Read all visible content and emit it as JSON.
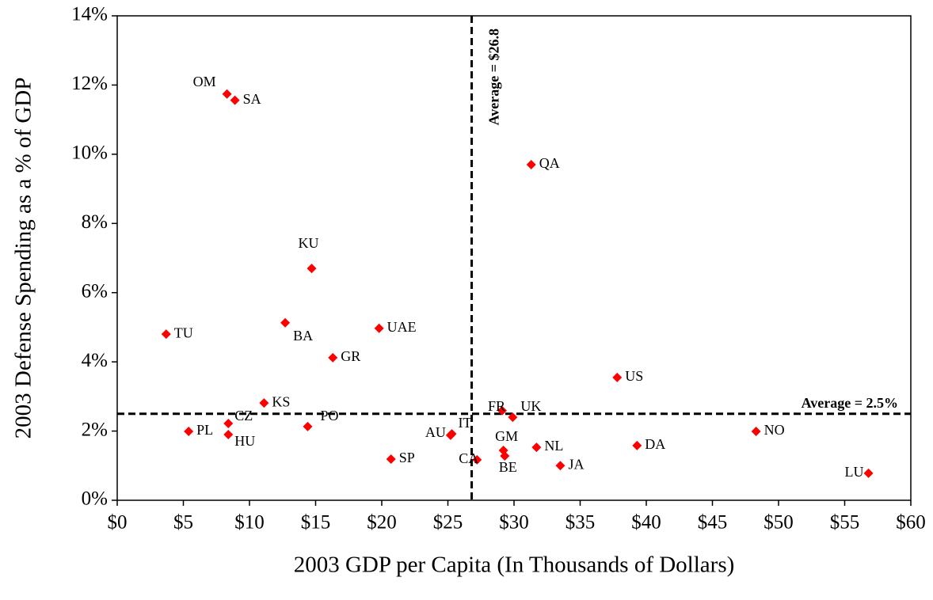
{
  "chart_data": {
    "type": "scatter",
    "x_label": "2003 GDP per Capita (In Thousands of Dollars)",
    "y_label": "2003 Defense Spending as  a  % of GDP",
    "labels": [
      "OM",
      "SA",
      "QA",
      "KU",
      "TU",
      "BA",
      "UAE",
      "GR",
      "US",
      "KS",
      "FR",
      "UK",
      "PL",
      "CZ",
      "HU",
      "PO",
      "AU",
      "IT",
      "GM",
      "BE",
      "NL",
      "CA",
      "SP",
      "JA",
      "DA",
      "NO",
      "LU"
    ],
    "x": [
      8.3,
      8.9,
      31.3,
      14.7,
      3.7,
      12.7,
      19.8,
      16.3,
      37.8,
      11.1,
      29.1,
      29.9,
      5.4,
      8.4,
      8.4,
      14.4,
      25.2,
      25.3,
      29.2,
      29.3,
      31.7,
      27.2,
      20.7,
      33.5,
      39.3,
      48.3,
      56.8
    ],
    "values": [
      11.74,
      11.56,
      9.7,
      6.7,
      4.8,
      5.13,
      4.97,
      4.12,
      3.55,
      2.81,
      2.59,
      2.4,
      1.99,
      2.22,
      1.9,
      2.13,
      1.88,
      1.92,
      1.44,
      1.28,
      1.53,
      1.17,
      1.19,
      1.0,
      1.58,
      1.99,
      0.78
    ],
    "color": "#ff0000",
    "xlim": [
      0,
      60
    ],
    "xticks": [
      {
        "value": 0,
        "label": "$0"
      },
      {
        "value": 5,
        "label": "$5"
      },
      {
        "value": 10,
        "label": "$10"
      },
      {
        "value": 15,
        "label": "$15"
      },
      {
        "value": 20,
        "label": "$20"
      },
      {
        "value": 25,
        "label": "$25"
      },
      {
        "value": 30,
        "label": "$30"
      },
      {
        "value": 35,
        "label": "$35"
      },
      {
        "value": 40,
        "label": "$40"
      },
      {
        "value": 45,
        "label": "$45"
      },
      {
        "value": 50,
        "label": "$50"
      },
      {
        "value": 55,
        "label": "$55"
      },
      {
        "value": 60,
        "label": "$60"
      }
    ],
    "ylim": [
      0,
      14
    ],
    "yticks": [
      {
        "value": 0,
        "label": "0%"
      },
      {
        "value": 2,
        "label": "2%"
      },
      {
        "value": 4,
        "label": "4%"
      },
      {
        "value": 6,
        "label": "6%"
      },
      {
        "value": 8,
        "label": "8%"
      },
      {
        "value": 10,
        "label": "10%"
      },
      {
        "value": 12,
        "label": "12%"
      },
      {
        "value": 14,
        "label": "14%"
      }
    ],
    "reference_lines": [
      {
        "axis": "x",
        "value": 26.8,
        "label": "Average = $26.8"
      },
      {
        "axis": "y",
        "value": 2.5,
        "label": "Average = 2.5%"
      }
    ],
    "grid": false
  }
}
